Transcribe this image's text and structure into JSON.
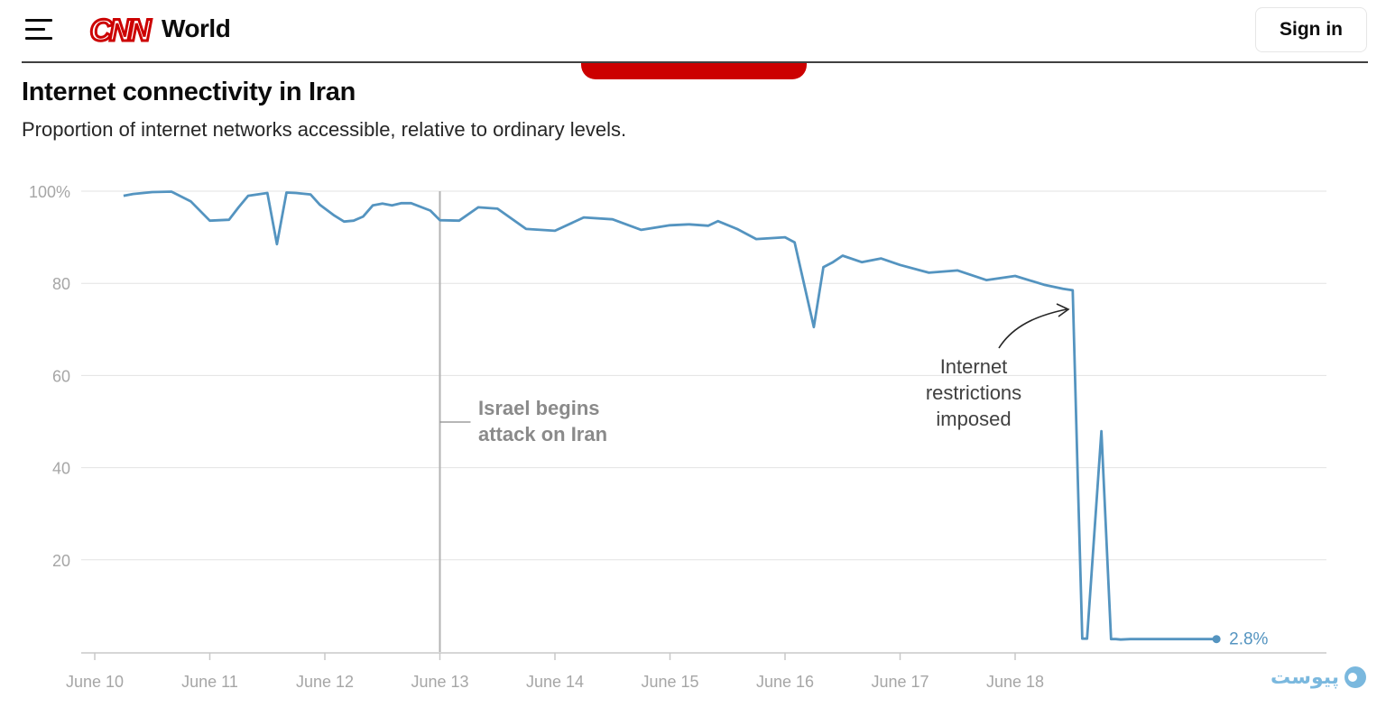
{
  "header": {
    "menu_icon": "hamburger-menu-icon",
    "logo_text": "CNN",
    "section": "World",
    "sign_in_label": "Sign in",
    "brand_color": "#cc0000"
  },
  "chart_data": {
    "type": "line",
    "title": "Internet connectivity in Iran",
    "subtitle": "Proportion of internet networks accessible, relative to ordinary levels.",
    "xlabel": "",
    "ylabel": "",
    "xlim": [
      "June 10",
      "June 19 18:00"
    ],
    "ylim": [
      0,
      100
    ],
    "x_ticks": [
      "June 10",
      "June 11",
      "June 12",
      "June 13",
      "June 14",
      "June 15",
      "June 16",
      "June 17",
      "June 18"
    ],
    "y_ticks": [
      "100%",
      "80",
      "60",
      "40",
      "20"
    ],
    "y_tick_values": [
      100,
      80,
      60,
      40,
      20
    ],
    "grid": true,
    "series": [
      {
        "color": "#5494c0",
        "x": [
          "June 10 06:00",
          "June 10 08:00",
          "June 10 12:00",
          "June 10 16:00",
          "June 10 20:00",
          "June 11 00:00",
          "June 11 04:00",
          "June 11 06:00",
          "June 11 08:00",
          "June 11 12:00",
          "June 11 14:00",
          "June 11 16:00",
          "June 11 18:00",
          "June 11 21:00",
          "June 11 23:00",
          "June 12 02:00",
          "June 12 04:00",
          "June 12 06:00",
          "June 12 08:00",
          "June 12 10:00",
          "June 12 12:00",
          "June 12 14:00",
          "June 12 16:00",
          "June 12 18:00",
          "June 12 22:00",
          "June 13 00:00",
          "June 13 04:00",
          "June 13 08:00",
          "June 13 12:00",
          "June 13 18:00",
          "June 14 00:00",
          "June 14 06:00",
          "June 14 12:00",
          "June 14 18:00",
          "June 15 00:00",
          "June 15 04:00",
          "June 15 08:00",
          "June 15 10:00",
          "June 15 14:00",
          "June 15 18:00",
          "June 16 00:00",
          "June 16 02:00",
          "June 16 06:00",
          "June 16 08:00",
          "June 16 10:00",
          "June 16 12:00",
          "June 16 16:00",
          "June 16 20:00",
          "June 17 00:00",
          "June 17 06:00",
          "June 17 12:00",
          "June 17 18:00",
          "June 18 00:00",
          "June 18 06:00",
          "June 18 10:00",
          "June 18 12:00",
          "June 18 13:00",
          "June 18 14:00",
          "June 18 15:00",
          "June 18 18:00",
          "June 18 20:00",
          "June 18 21:00",
          "June 18 22:00",
          "June 19 00:00",
          "June 19 06:00",
          "June 19 12:00",
          "June 19 18:00"
        ],
        "values": [
          99,
          99.4,
          99.8,
          99.9,
          97.8,
          93.6,
          93.8,
          96.5,
          99,
          99.6,
          88.5,
          99.7,
          99.6,
          99.3,
          97,
          94.7,
          93.4,
          93.6,
          94.5,
          96.9,
          97.3,
          96.9,
          97.4,
          97.4,
          95.8,
          93.7,
          93.6,
          96.5,
          96.2,
          91.8,
          91.4,
          94.3,
          93.9,
          91.6,
          92.6,
          92.8,
          92.5,
          93.5,
          91.8,
          89.6,
          90,
          88.9,
          70.5,
          83.5,
          84.6,
          86,
          84.6,
          85.4,
          84,
          82.3,
          82.8,
          80.7,
          81.6,
          79.7,
          78.8,
          78.5,
          40,
          2.9,
          2.9,
          47.9,
          2.8,
          2.8,
          2.7,
          2.8,
          2.8,
          2.8,
          2.8
        ]
      }
    ],
    "end_label": "2.8%",
    "annotations": [
      {
        "text": "Israel begins attack on Iran",
        "lines": [
          "Israel begins",
          "attack on Iran"
        ],
        "x": "June 13"
      },
      {
        "text": "Internet restrictions imposed",
        "lines": [
          "Internet",
          "restrictions",
          "imposed"
        ],
        "x": "June 18"
      }
    ]
  },
  "watermark": {
    "text": "پیوست"
  }
}
